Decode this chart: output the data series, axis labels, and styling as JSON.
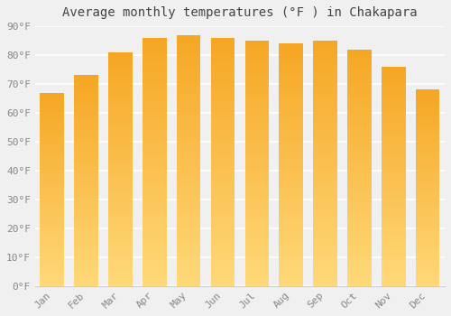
{
  "title": "Average monthly temperatures (°F ) in Chakapara",
  "months": [
    "Jan",
    "Feb",
    "Mar",
    "Apr",
    "May",
    "Jun",
    "Jul",
    "Aug",
    "Sep",
    "Oct",
    "Nov",
    "Dec"
  ],
  "values": [
    67,
    73,
    81,
    86,
    87,
    86,
    85,
    84,
    85,
    82,
    76,
    68
  ],
  "bar_color_top": "#F5A623",
  "bar_color_bottom": "#FFD878",
  "ylim": [
    0,
    90
  ],
  "yticks": [
    0,
    10,
    20,
    30,
    40,
    50,
    60,
    70,
    80,
    90
  ],
  "ytick_labels": [
    "0°F",
    "10°F",
    "20°F",
    "30°F",
    "40°F",
    "50°F",
    "60°F",
    "70°F",
    "80°F",
    "90°F"
  ],
  "background_color": "#f0f0f0",
  "grid_color": "#ffffff",
  "title_fontsize": 10,
  "tick_fontsize": 8,
  "font_family": "monospace",
  "bar_width": 0.7,
  "n_gradient_steps": 60
}
